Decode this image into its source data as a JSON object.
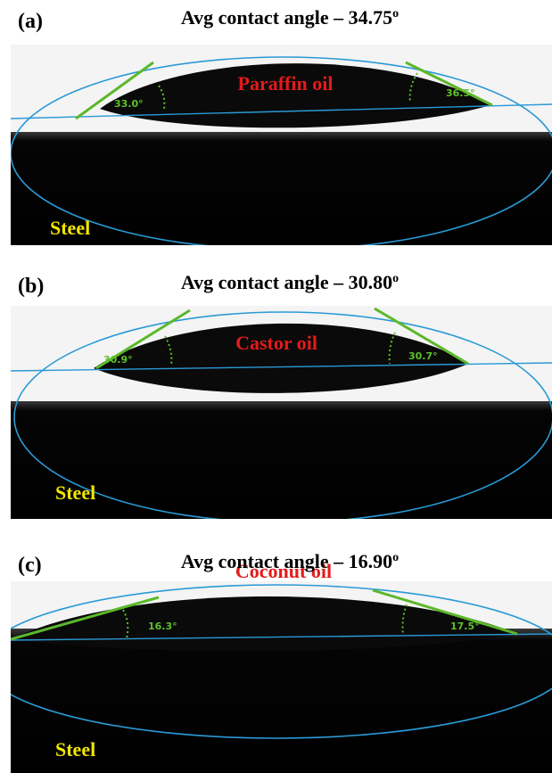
{
  "panels": [
    {
      "label": "(a)",
      "title": "Avg contact angle – 34.75",
      "title_superscript": "o",
      "liquid": "Paraffin oil",
      "left_angle": "33.0°",
      "right_angle": "36.5°",
      "substrate": "Steel"
    },
    {
      "label": "(b)",
      "title": "Avg contact angle – 30.80",
      "title_superscript": "o",
      "liquid": "Castor oil",
      "left_angle": "30.9°",
      "right_angle": "30.7°",
      "substrate": "Steel"
    },
    {
      "label": "(c)",
      "title": "Avg contact angle – 16.90",
      "title_superscript": "o",
      "liquid": "Coconut oil",
      "left_angle": "16.3°",
      "right_angle": "17.5°",
      "substrate": "Steel"
    }
  ]
}
